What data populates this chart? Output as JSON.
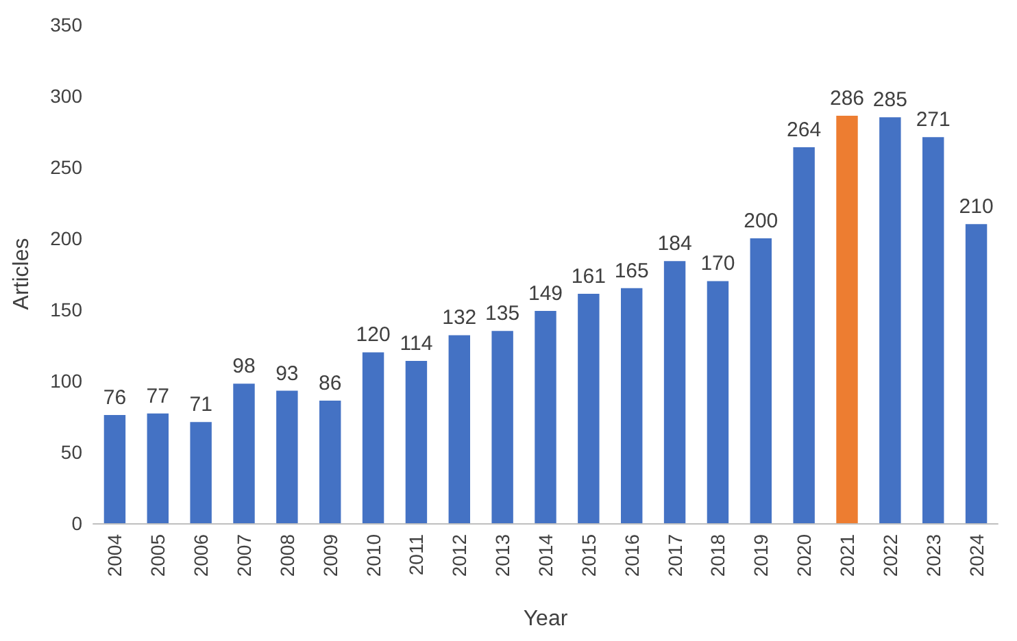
{
  "chart_data": {
    "type": "bar",
    "xlabel": "Year",
    "ylabel": "Articles",
    "categories": [
      "2004",
      "2005",
      "2006",
      "2007",
      "2008",
      "2009",
      "2010",
      "2011",
      "2012",
      "2013",
      "2014",
      "2015",
      "2016",
      "2017",
      "2018",
      "2019",
      "2020",
      "2021",
      "2022",
      "2023",
      "2024"
    ],
    "values": [
      76,
      77,
      71,
      98,
      93,
      86,
      120,
      114,
      132,
      135,
      149,
      161,
      165,
      184,
      170,
      200,
      264,
      286,
      285,
      271,
      210
    ],
    "colors": [
      "#4472c4",
      "#4472c4",
      "#4472c4",
      "#4472c4",
      "#4472c4",
      "#4472c4",
      "#4472c4",
      "#4472c4",
      "#4472c4",
      "#4472c4",
      "#4472c4",
      "#4472c4",
      "#4472c4",
      "#4472c4",
      "#4472c4",
      "#4472c4",
      "#4472c4",
      "#ed7d31",
      "#4472c4",
      "#4472c4",
      "#4472c4"
    ],
    "ylim": [
      0,
      350
    ],
    "yticks": [
      0,
      50,
      100,
      150,
      200,
      250,
      300,
      350
    ],
    "data_labels": true
  }
}
